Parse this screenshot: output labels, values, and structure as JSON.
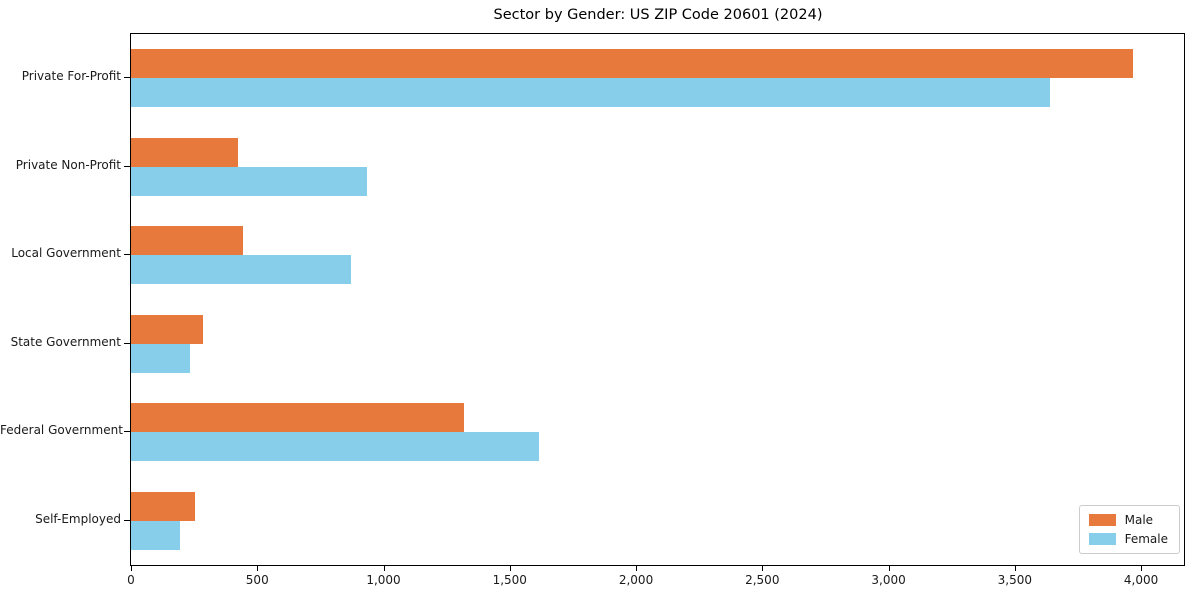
{
  "title": "Sector by Gender: US ZIP Code 20601 (2024)",
  "chart_data": {
    "type": "bar",
    "orientation": "horizontal",
    "title": "Sector by Gender: US ZIP Code 20601 (2024)",
    "categories": [
      "Private For-Profit",
      "Private Non-Profit",
      "Local Government",
      "State Government",
      "Federal Government",
      "Self-Employed"
    ],
    "series": [
      {
        "name": "Male",
        "color": "#e8793d",
        "values": [
          3970,
          425,
          445,
          285,
          1320,
          255
        ]
      },
      {
        "name": "Female",
        "color": "#87ceeb",
        "values": [
          3640,
          935,
          870,
          235,
          1615,
          195
        ]
      }
    ],
    "xlim": [
      0,
      4170
    ],
    "xticks": [
      0,
      500,
      1000,
      1500,
      2000,
      2500,
      3000,
      3500,
      4000
    ],
    "xtick_labels": [
      "0",
      "500",
      "1,000",
      "1,500",
      "2,000",
      "2,500",
      "3,000",
      "3,500",
      "4,000"
    ],
    "xlabel": "",
    "ylabel": "",
    "grid": false,
    "legend_position": "lower right",
    "spine_color": "#000000",
    "background": "#ffffff"
  }
}
